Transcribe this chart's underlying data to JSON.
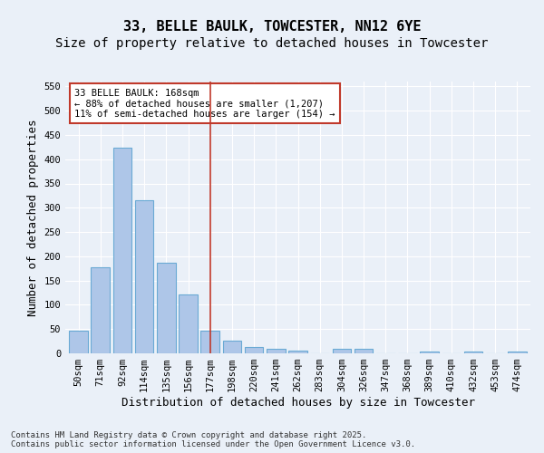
{
  "title1": "33, BELLE BAULK, TOWCESTER, NN12 6YE",
  "title2": "Size of property relative to detached houses in Towcester",
  "xlabel": "Distribution of detached houses by size in Towcester",
  "ylabel": "Number of detached properties",
  "categories": [
    "50sqm",
    "71sqm",
    "92sqm",
    "114sqm",
    "135sqm",
    "156sqm",
    "177sqm",
    "198sqm",
    "220sqm",
    "241sqm",
    "262sqm",
    "283sqm",
    "304sqm",
    "326sqm",
    "347sqm",
    "368sqm",
    "389sqm",
    "410sqm",
    "432sqm",
    "453sqm",
    "474sqm"
  ],
  "values": [
    46,
    178,
    423,
    316,
    186,
    122,
    46,
    27,
    13,
    10,
    6,
    0,
    10,
    10,
    0,
    0,
    3,
    0,
    4,
    0,
    3
  ],
  "bar_color": "#aec6e8",
  "bar_edge_color": "#6aaad4",
  "vline_x": 6,
  "vline_color": "#c0392b",
  "annotation_text": "33 BELLE BAULK: 168sqm\n← 88% of detached houses are smaller (1,207)\n11% of semi-detached houses are larger (154) →",
  "annotation_box_color": "#ffffff",
  "annotation_box_edge_color": "#c0392b",
  "ylim": [
    0,
    560
  ],
  "yticks": [
    0,
    50,
    100,
    150,
    200,
    250,
    300,
    350,
    400,
    450,
    500,
    550
  ],
  "bg_color": "#eaf0f8",
  "plot_bg_color": "#eaf0f8",
  "footer_text": "Contains HM Land Registry data © Crown copyright and database right 2025.\nContains public sector information licensed under the Open Government Licence v3.0.",
  "title_fontsize": 11,
  "subtitle_fontsize": 10,
  "tick_fontsize": 7.5,
  "xlabel_fontsize": 9,
  "ylabel_fontsize": 9,
  "annotation_fontsize": 7.5,
  "footer_fontsize": 6.5
}
